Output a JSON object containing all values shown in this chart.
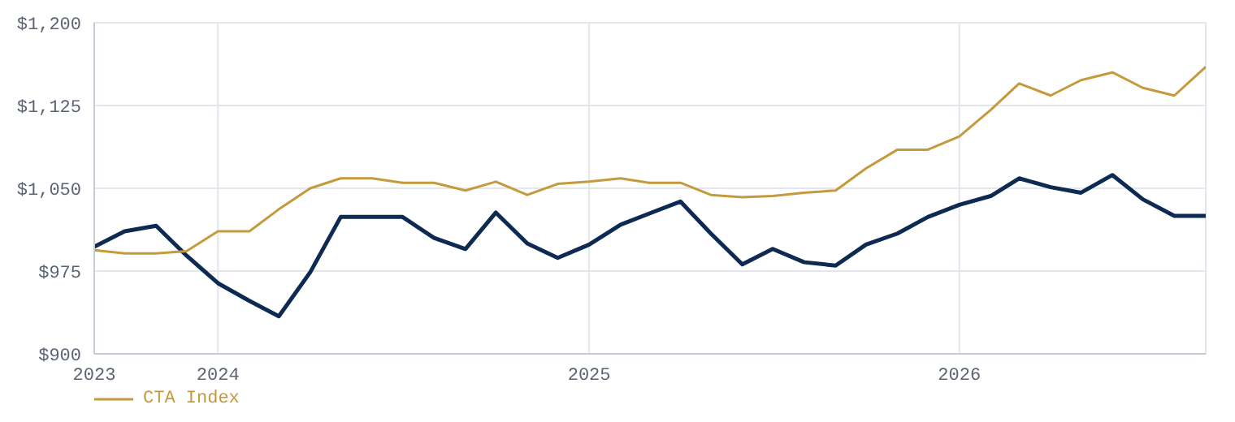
{
  "chart_data": {
    "type": "line",
    "x": [
      "2023-09",
      "2023-10",
      "2023-11",
      "2023-12",
      "2024-01",
      "2024-02",
      "2024-03",
      "2024-04",
      "2024-05",
      "2024-06",
      "2024-07",
      "2024-08",
      "2024-09",
      "2024-10",
      "2024-11",
      "2024-12",
      "2025-01",
      "2025-02",
      "2025-03",
      "2025-04",
      "2025-05",
      "2025-06",
      "2025-07",
      "2025-08",
      "2025-09",
      "2025-10",
      "2025-11",
      "2025-12",
      "2026-01",
      "2026-02",
      "2026-03",
      "2026-04",
      "2026-05",
      "2026-06",
      "2026-07",
      "2026-08",
      "2026-09"
    ],
    "series": [
      {
        "color": "#0d2b52",
        "values": [
          997,
          1011,
          1016,
          989,
          964,
          948,
          934,
          974,
          1024,
          1024,
          1024,
          1005,
          995,
          1028,
          1000,
          987,
          999,
          1017,
          1027,
          1038,
          1009,
          981,
          995,
          983,
          980,
          999,
          1009,
          1024,
          1035,
          1043,
          1059,
          1051,
          1046,
          1062,
          1040,
          1025,
          1025
        ]
      },
      {
        "name": "CTA Index",
        "color": "#c49a3c",
        "values": [
          994,
          991,
          991,
          993,
          1011,
          1011,
          1031,
          1050,
          1059,
          1059,
          1055,
          1055,
          1048,
          1056,
          1044,
          1054,
          1056,
          1059,
          1055,
          1055,
          1044,
          1042,
          1043,
          1046,
          1048,
          1068,
          1085,
          1085,
          1097,
          1121,
          1145,
          1134,
          1148,
          1155,
          1141,
          1134,
          1160
        ]
      }
    ],
    "xlim": [
      "2023-09",
      "2026-09"
    ],
    "xticks": [
      {
        "value": "2023-09",
        "label": "2023"
      },
      {
        "value": "2024",
        "label": "2024"
      },
      {
        "value": "2025",
        "label": "2025"
      },
      {
        "value": "2026",
        "label": "2026"
      }
    ],
    "ylim": [
      900,
      1200
    ],
    "yticks": [
      {
        "value": 900,
        "label": "$900"
      },
      {
        "value": 975,
        "label": "$975"
      },
      {
        "value": 1050,
        "label": "$1,050"
      },
      {
        "value": 1125,
        "label": "$1,125"
      },
      {
        "value": 1200,
        "label": "$1,200"
      }
    ],
    "grid": true,
    "legend": "bottom",
    "marker": "none",
    "line_style": "solid"
  }
}
